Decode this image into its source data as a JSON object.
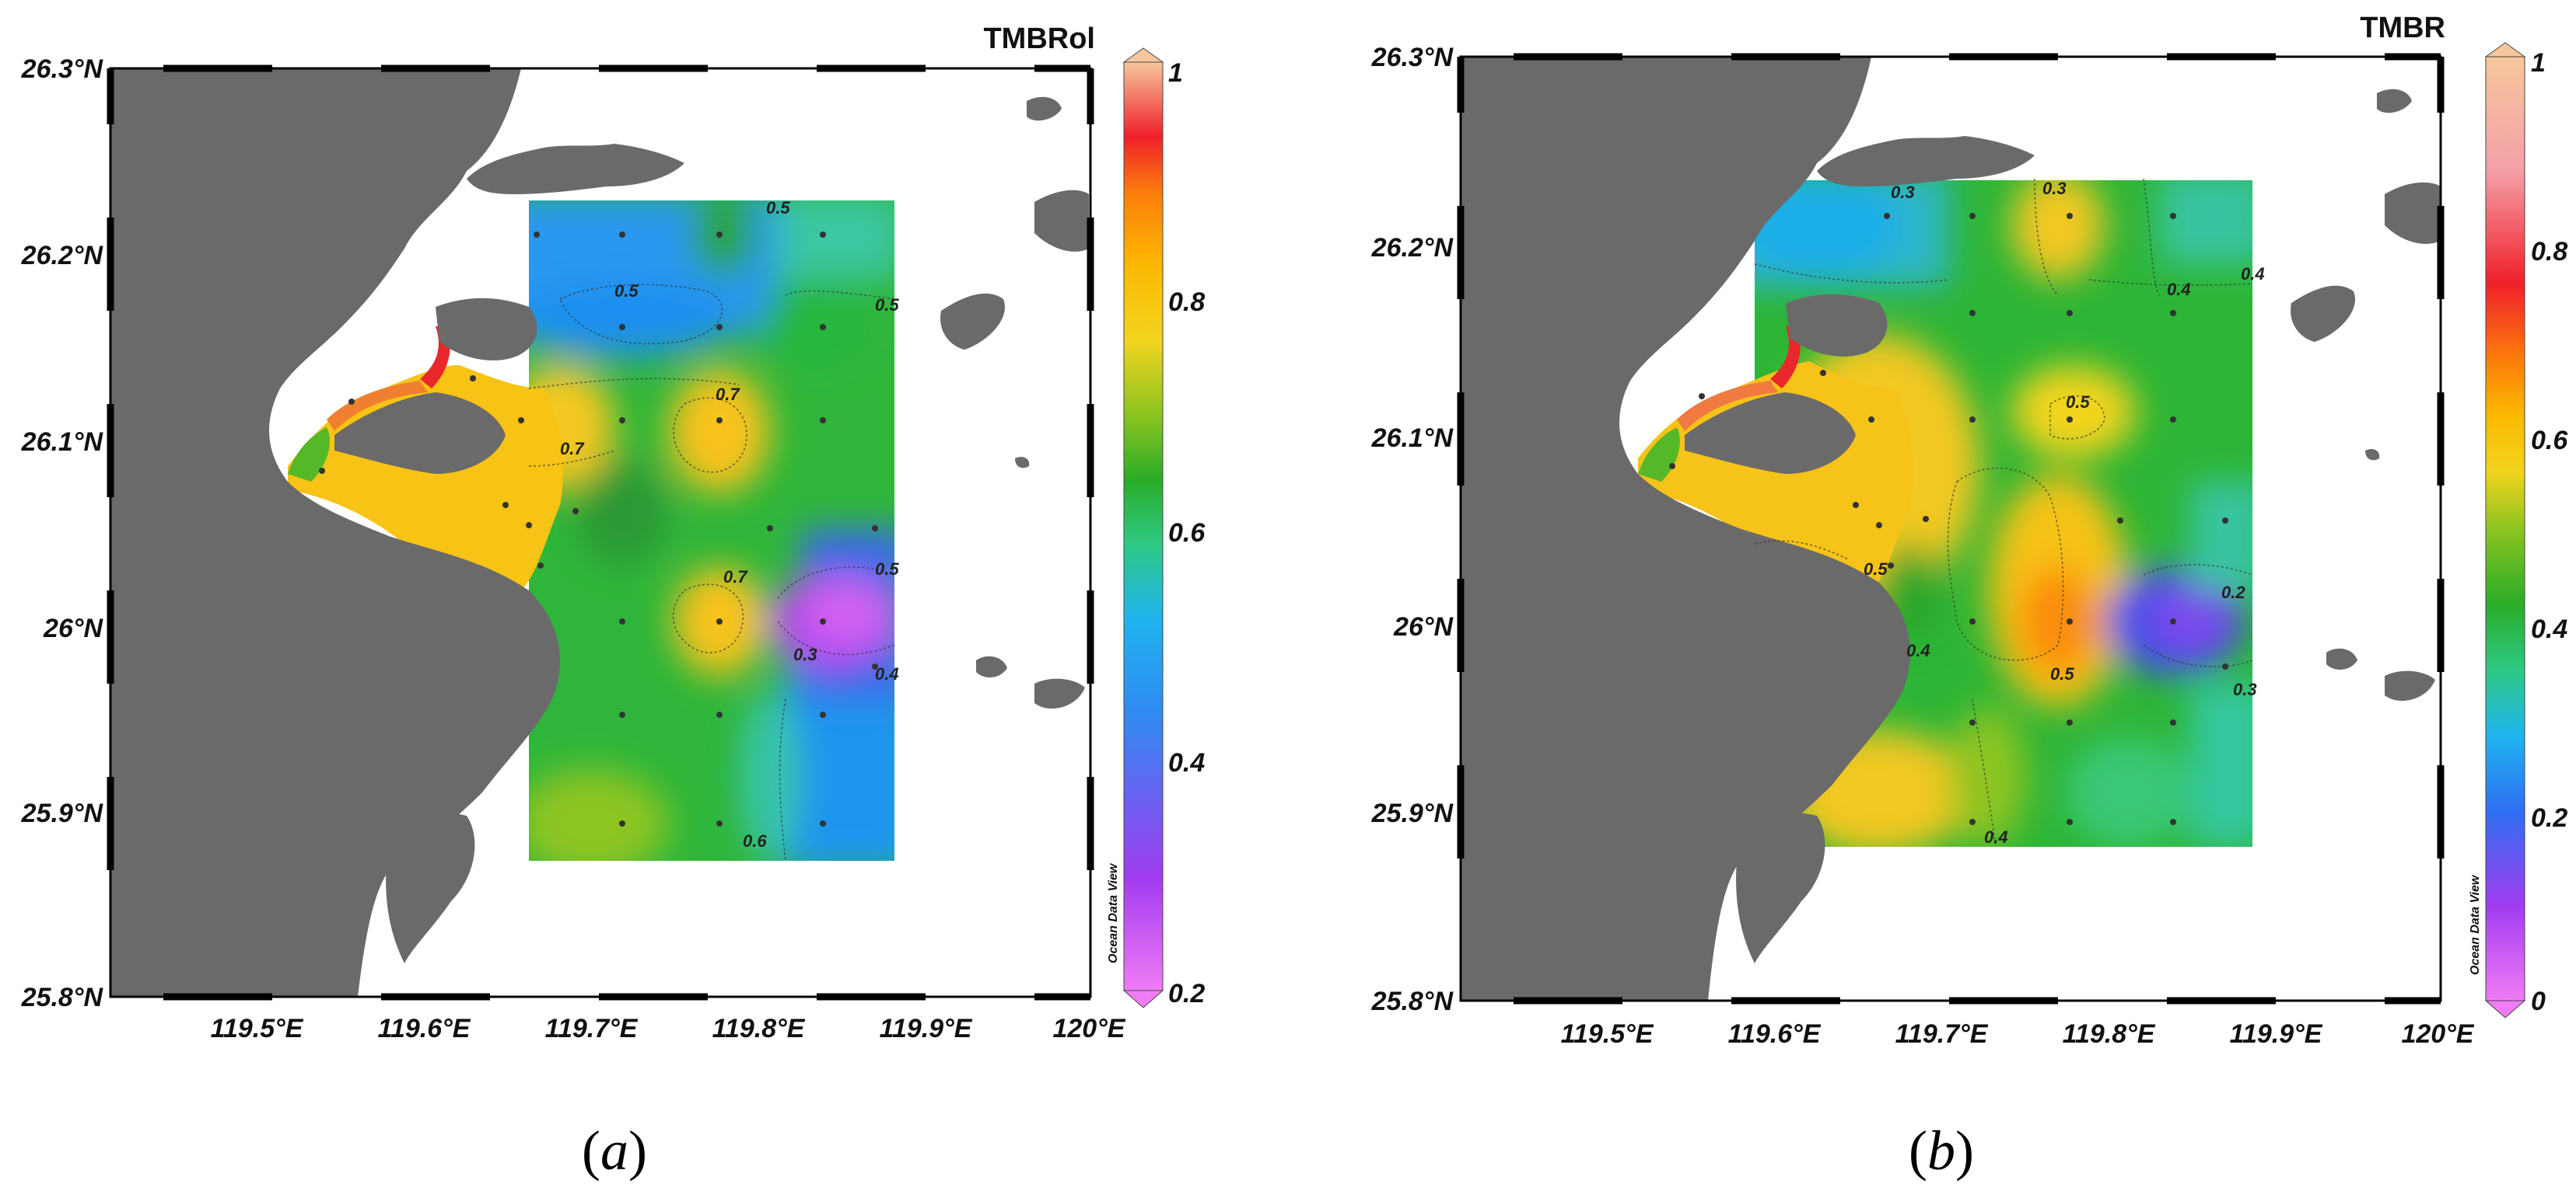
{
  "panels": [
    {
      "id": "a",
      "title": "TMBRol",
      "caption": "(a)",
      "caption_parts": [
        "(",
        "a",
        ")"
      ],
      "lat_labels": [
        "26.3°N",
        "26.2°N",
        "26.1°N",
        "26°N",
        "25.9°N",
        "25.8°N"
      ],
      "lon_labels": [
        "119.5°E",
        "119.6°E",
        "119.7°E",
        "119.8°E",
        "119.9°E",
        "120°E"
      ],
      "colorbar": {
        "min": 0.2,
        "max": 1,
        "ticks": [
          "1",
          "0.8",
          "0.6",
          "0.4",
          "0.2"
        ],
        "source": "Ocean Data View"
      },
      "contour_labels": [
        "0.5",
        "0.5",
        "0.7",
        "0.7",
        "0.7",
        "0.3",
        "0.6",
        "0.5",
        "0.5",
        "0.4"
      ]
    },
    {
      "id": "b",
      "title": "TMBR",
      "caption": "(b)",
      "caption_parts": [
        "(",
        "b",
        ")"
      ],
      "lat_labels": [
        "26.3°N",
        "26.2°N",
        "26.1°N",
        "26°N",
        "25.9°N",
        "25.8°N"
      ],
      "lon_labels": [
        "119.5°E",
        "119.6°E",
        "119.7°E",
        "119.8°E",
        "119.9°E",
        "120°E"
      ],
      "colorbar": {
        "min": 0,
        "max": 1,
        "ticks": [
          "1",
          "0.8",
          "0.6",
          "0.4",
          "0.2",
          "0"
        ],
        "source": "Ocean Data View"
      },
      "contour_labels": [
        "0.3",
        "0.3",
        "0.4",
        "0.5",
        "0.5",
        "0.5",
        "0.4",
        "0.2",
        "0.4",
        "0.3",
        "0.4"
      ]
    }
  ],
  "colors": {
    "land": "#6a6a6a",
    "water": "#ffffff",
    "scale": [
      "#f07cf5",
      "#a23cf0",
      "#2f8bf2",
      "#1fb3ef",
      "#2ec985",
      "#2aac28",
      "#8cc420",
      "#f2d41f",
      "#fbb900",
      "#fb7c0c",
      "#f0202a",
      "#f4b0b8",
      "#f6c79c"
    ]
  }
}
